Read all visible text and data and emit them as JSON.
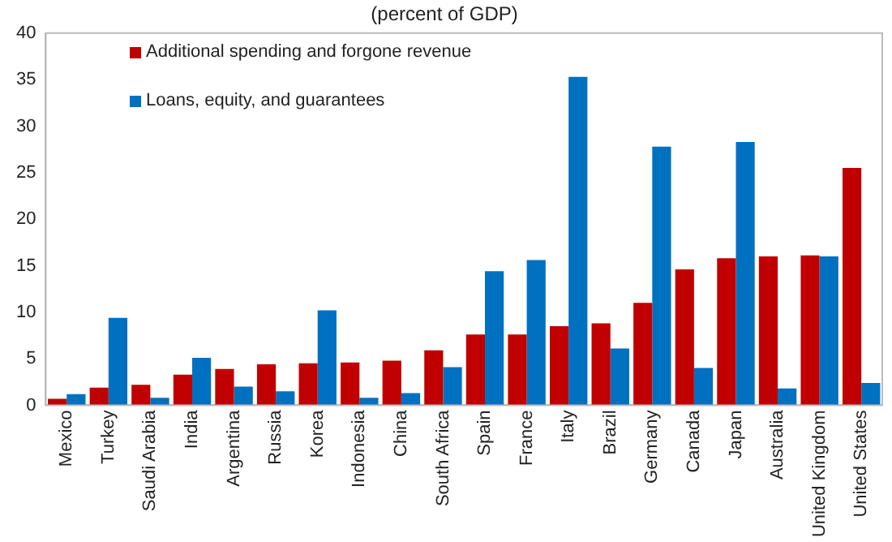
{
  "chart_data": {
    "type": "bar",
    "title": "(percent of GDP)",
    "categories": [
      "Mexico",
      "Turkey",
      "Saudi Arabia",
      "India",
      "Argentina",
      "Russia",
      "Korea",
      "Indonesia",
      "China",
      "South Africa",
      "Spain",
      "France",
      "Italy",
      "Brazil",
      "Germany",
      "Canada",
      "Japan",
      "Australia",
      "United Kingdom",
      "United States"
    ],
    "series": [
      {
        "name": "Additional spending and forgone revenue",
        "color": "#c00000",
        "values": [
          0.7,
          1.9,
          2.2,
          3.3,
          3.9,
          4.4,
          4.5,
          4.6,
          4.8,
          5.9,
          7.6,
          7.6,
          8.5,
          8.8,
          11.0,
          14.6,
          15.8,
          16.0,
          16.1,
          25.5
        ]
      },
      {
        "name": "Loans, equity, and guarantees",
        "color": "#0070c0",
        "values": [
          1.2,
          9.4,
          0.8,
          5.1,
          2.0,
          1.5,
          10.2,
          0.8,
          1.3,
          4.1,
          14.4,
          15.6,
          35.3,
          6.1,
          27.8,
          4.0,
          28.3,
          1.8,
          16.0,
          2.4
        ]
      }
    ],
    "ylim": [
      0,
      40
    ],
    "yticks": [
      0,
      5,
      10,
      15,
      20,
      25,
      30,
      35,
      40
    ],
    "grid": false,
    "legend": "top left"
  }
}
